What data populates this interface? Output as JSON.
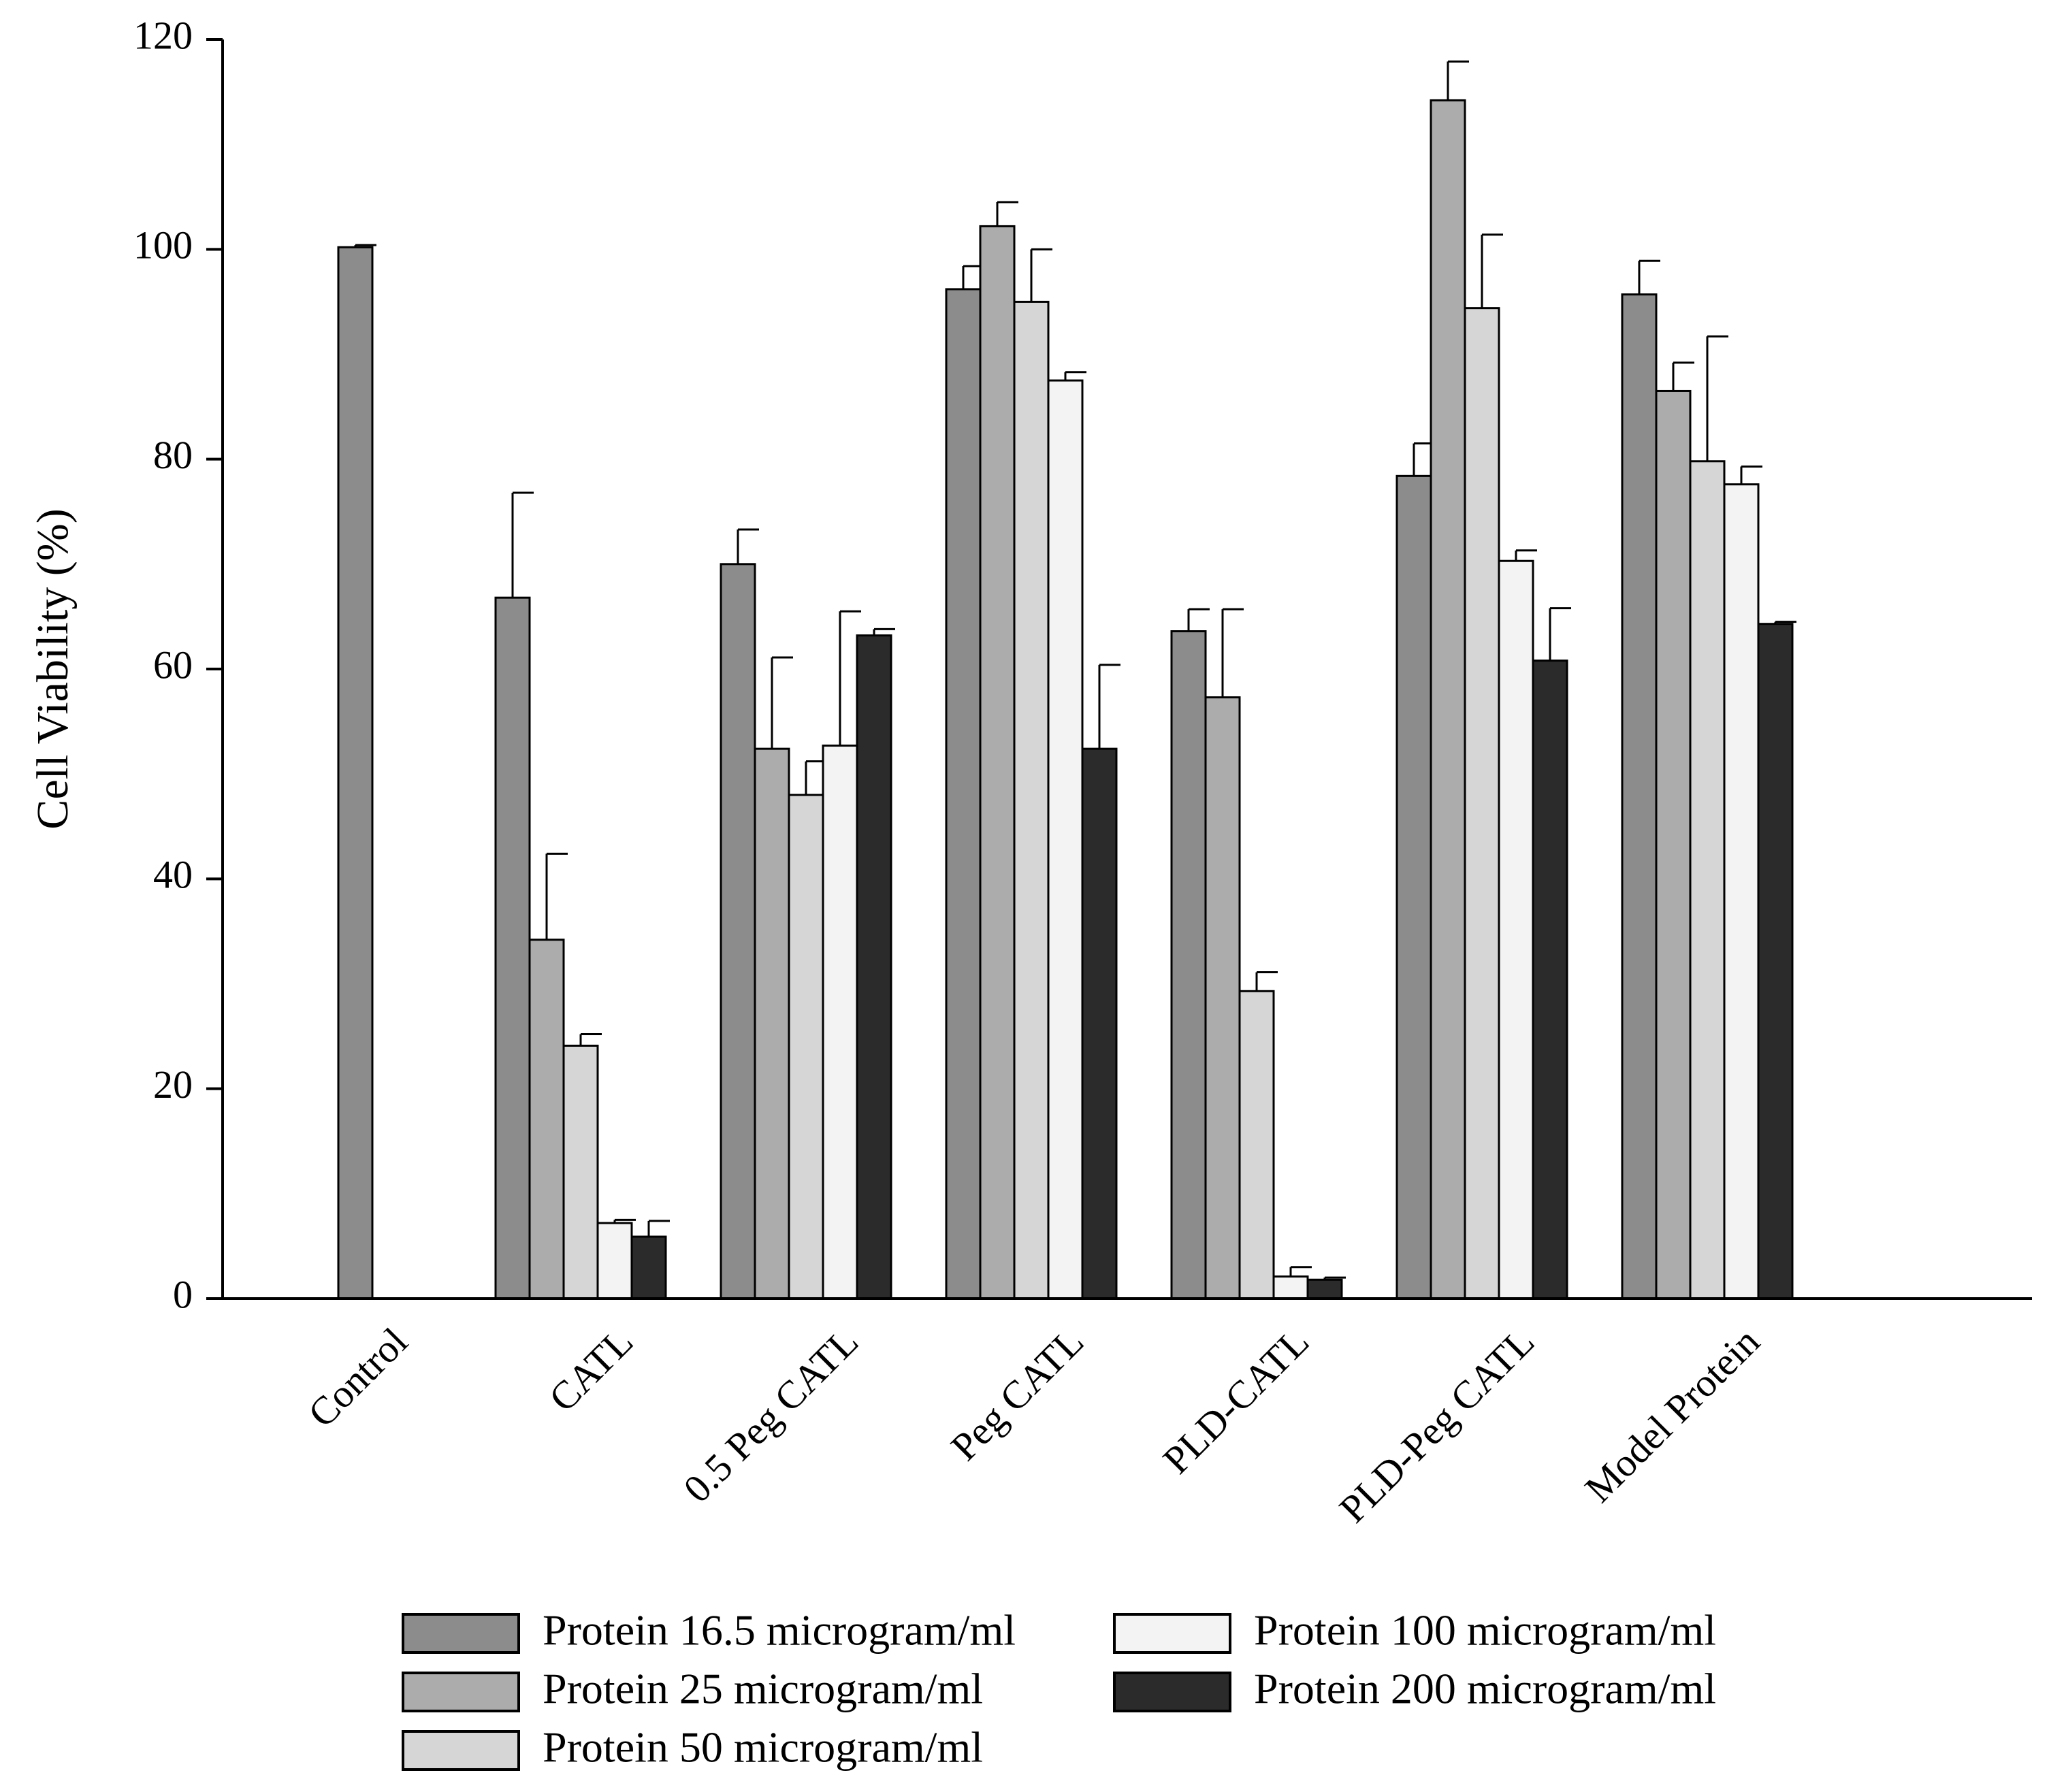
{
  "chart_data": {
    "type": "bar",
    "title": "",
    "xlabel": "",
    "ylabel": "Cell Viability (%)",
    "ylim": [
      0,
      120
    ],
    "yticks": [
      0,
      20,
      40,
      60,
      80,
      100,
      120
    ],
    "categories": [
      "Control",
      "CATL",
      "0.5 Peg CATL",
      "Peg CATL",
      "PLD-CATL",
      "PLD-Peg CATL",
      "Model Protein"
    ],
    "legend_position": "bottom",
    "series": [
      {
        "name": "Protein 16.5 microgram/ml",
        "color": "#8c8c8c",
        "values": [
          100.2,
          66.8,
          70.0,
          96.2,
          63.6,
          78.4,
          95.7
        ],
        "errors": [
          0.2,
          10.0,
          3.3,
          2.2,
          2.1,
          3.1,
          3.2
        ]
      },
      {
        "name": "Protein 25 microgram/ml",
        "color": "#acacac",
        "values": [
          null,
          34.2,
          52.4,
          102.2,
          57.3,
          114.2,
          86.5
        ],
        "errors": [
          null,
          8.2,
          8.7,
          2.3,
          8.4,
          3.7,
          2.7
        ]
      },
      {
        "name": "Protein 50 microgram/ml",
        "color": "#d6d6d6",
        "values": [
          null,
          24.1,
          48.0,
          95.0,
          29.3,
          94.4,
          79.8
        ],
        "errors": [
          null,
          1.1,
          3.2,
          5.0,
          1.8,
          7.0,
          11.9
        ]
      },
      {
        "name": "Protein 100 microgram/ml",
        "color": "#f3f3f3",
        "values": [
          null,
          7.2,
          52.7,
          87.5,
          2.1,
          70.3,
          77.6
        ],
        "errors": [
          null,
          0.3,
          12.8,
          0.8,
          0.9,
          1.0,
          1.7
        ]
      },
      {
        "name": "Protein 200 microgram/ml",
        "color": "#2b2b2b",
        "values": [
          null,
          5.9,
          63.2,
          52.4,
          1.8,
          60.8,
          64.3
        ],
        "errors": [
          null,
          1.5,
          0.6,
          8.0,
          0.2,
          5.0,
          0.2
        ]
      }
    ]
  }
}
